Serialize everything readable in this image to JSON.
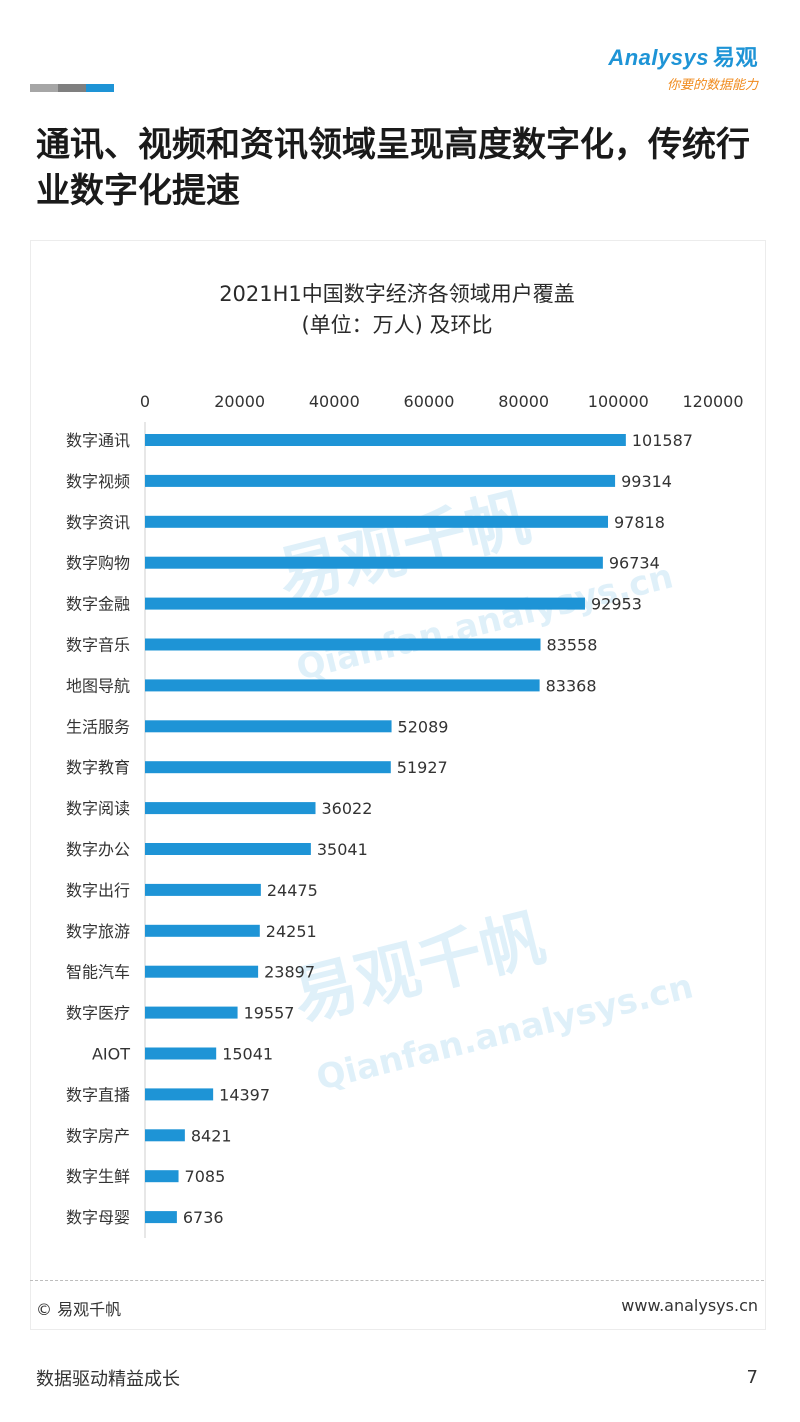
{
  "header": {
    "logo_text": "Analysys",
    "logo_cn": "易观",
    "logo_slogan": "你要的数据能力",
    "deco_colors": [
      "#a6a6a6",
      "#7f7f7f",
      "#1e94d6"
    ]
  },
  "page": {
    "title": "通讯、视频和资讯领域呈现高度数字化，传统行业数字化提速"
  },
  "watermark": {
    "cn": "易观千帆",
    "en": "Qianfan.analysys.cn"
  },
  "chart_data": {
    "type": "bar",
    "orientation": "horizontal",
    "title": "2021H1中国数字经济各领域用户覆盖",
    "subtitle": "(单位：万人) 及环比",
    "categories": [
      "数字通讯",
      "数字视频",
      "数字资讯",
      "数字购物",
      "数字金融",
      "数字音乐",
      "地图导航",
      "生活服务",
      "数字教育",
      "数字阅读",
      "数字办公",
      "数字出行",
      "数字旅游",
      "智能汽车",
      "数字医疗",
      "AIOT",
      "数字直播",
      "数字房产",
      "数字生鲜",
      "数字母婴"
    ],
    "values": [
      101587,
      99314,
      97818,
      96734,
      92953,
      83558,
      83368,
      52089,
      51927,
      36022,
      35041,
      24475,
      24251,
      23897,
      19557,
      15041,
      14397,
      8421,
      7085,
      6736
    ],
    "xlim": [
      0,
      120000
    ],
    "xticks": [
      0,
      20000,
      40000,
      60000,
      80000,
      100000,
      120000
    ],
    "axis_position": "top",
    "grid": false,
    "bar_color": "#1e94d6"
  },
  "footer": {
    "copyright": "© 易观千帆",
    "website": "www.analysys.cn",
    "slogan": "数据驱动精益成长",
    "page_number": "7"
  }
}
